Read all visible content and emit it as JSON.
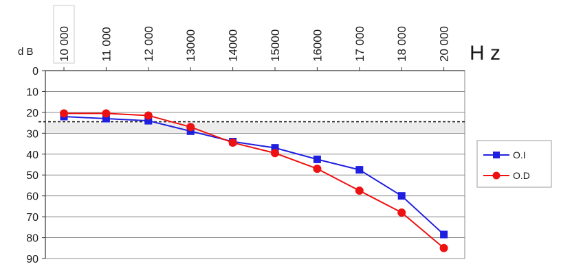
{
  "chart_data": {
    "type": "line",
    "title": "",
    "xlabel": "H z",
    "ylabel": "d B",
    "categories": [
      "10 000",
      "11 000",
      "12 000",
      "13000",
      "14000",
      "15000",
      "16000",
      "17 000",
      "18 000",
      "20 000"
    ],
    "y_ticks": [
      "0",
      "10",
      "20",
      "30",
      "40",
      "50",
      "60",
      "70",
      "80",
      "90"
    ],
    "ylim": [
      0,
      90
    ],
    "y_inverted": true,
    "x_axis_position": "top",
    "grid": true,
    "reference_line": 24.5,
    "legend_position": "right",
    "series": [
      {
        "name": "O.I",
        "color": "#1f1fe0",
        "marker": "square",
        "values": [
          22,
          23,
          24,
          29,
          34,
          37,
          42.5,
          47.5,
          60,
          78.5
        ]
      },
      {
        "name": "O.D",
        "color": "#ee1111",
        "marker": "circle",
        "values": [
          20.5,
          20.5,
          21.5,
          27,
          34.5,
          39.5,
          47,
          57.5,
          68,
          85
        ]
      }
    ]
  }
}
